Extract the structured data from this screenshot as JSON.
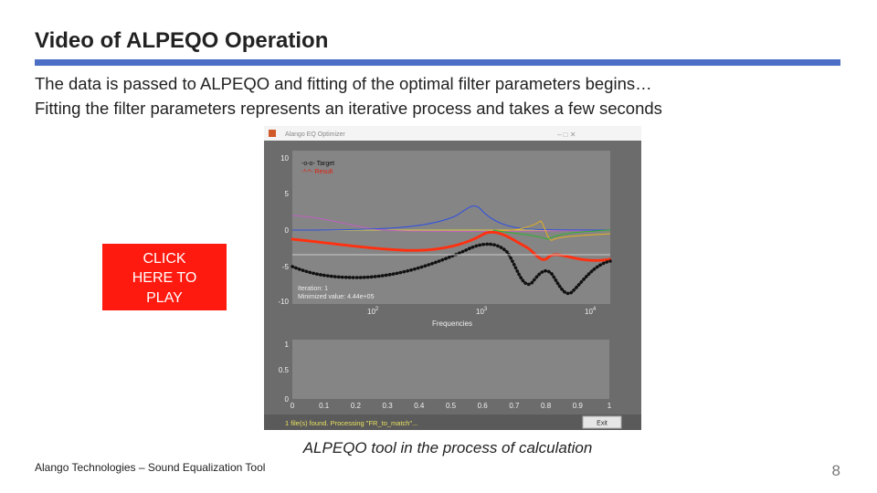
{
  "header": {
    "title": "Video of ALPEQO Operation"
  },
  "body": {
    "lines": [
      "The data is passed to ALPEQO and fitting of the optimal filter parameters begins…",
      "Fitting the filter parameters represents an iterative process and takes a few seconds"
    ]
  },
  "video": {
    "window_title": "Alango EQ Optimizer",
    "play_button": {
      "lines": [
        "CLICK",
        "HERE TO",
        "PLAY"
      ]
    },
    "plot": {
      "legend": [
        "-o-o- Target",
        "-*-*- Result"
      ],
      "yticks": [
        "10",
        "5",
        "0",
        "-5",
        "-10"
      ],
      "xticks": [
        {
          "base": "10",
          "exp": "2"
        },
        {
          "base": "10",
          "exp": "3"
        },
        {
          "base": "10",
          "exp": "4"
        }
      ],
      "xlabel": "Frequencies",
      "info": [
        "Iteration: 1",
        "Minimized value: 4.44e+05"
      ]
    },
    "progress": {
      "yticks": [
        "1",
        "0.5",
        "0"
      ],
      "xticks": [
        "0",
        "0.1",
        "0.2",
        "0.3",
        "0.4",
        "0.5",
        "0.6",
        "0.7",
        "0.8",
        "0.9",
        "1"
      ]
    },
    "status": "1 file(s) found. Processing \"FR_to_match\"...",
    "button": "Exit"
  },
  "caption": "ALPEQO tool in the process of calculation",
  "footer": {
    "text": "Alango Technologies – Sound Equalization Tool",
    "page": "8"
  }
}
